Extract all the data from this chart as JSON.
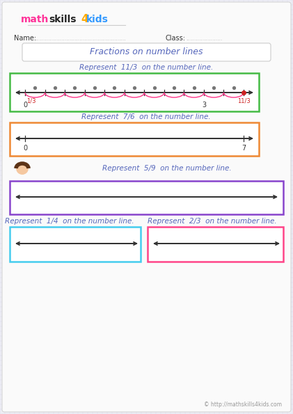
{
  "bg_color": "#eeeef5",
  "paper_color": "#fafafa",
  "grid_color": "#d8d8e8",
  "title_text": "Fractions on number lines",
  "title_color": "#5566bb",
  "label_color": "#333333",
  "problems": [
    {
      "instruction": "Represent  11/3  on the number line.",
      "box_color": "#44bb44",
      "arc_color": "#ff3388",
      "dot_color": "#888888",
      "endpoint_color": "#cc2222",
      "fraction_label": "1/3",
      "num_ticks": 11,
      "tick_labels": [
        [
          "0",
          "#333333"
        ],
        [
          "3",
          "#333333"
        ],
        [
          "11/3",
          "#cc2222"
        ]
      ]
    },
    {
      "instruction": "Represent  7/6  on the number line.",
      "box_color": "#ee8833",
      "tick_labels": [
        [
          "0",
          "#333333"
        ],
        [
          "7",
          "#333333"
        ]
      ]
    },
    {
      "instruction": "Represent  5/9  on the number line.",
      "box_color": "#8844cc"
    },
    {
      "instruction": "Represent  1/4  on the number line.",
      "box_color": "#44ccee"
    },
    {
      "instruction": "Represent  2/3  on the number line.",
      "box_color": "#ff4488"
    }
  ],
  "footer": "© http://mathskills4kids.com",
  "footer_color": "#999999"
}
